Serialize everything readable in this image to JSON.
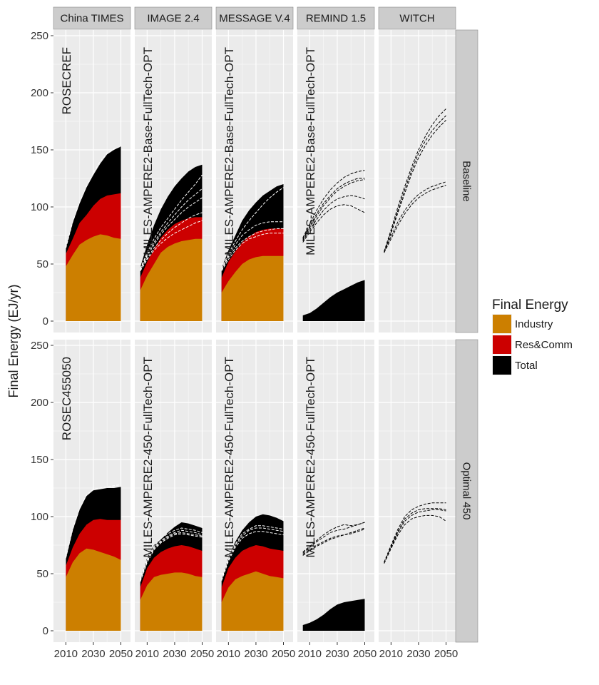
{
  "chart_data": {
    "type": "area",
    "ylabel": "Final Energy (EJ/yr)",
    "ylim": [
      -10,
      255
    ],
    "yticks": [
      0,
      50,
      100,
      150,
      200,
      250
    ],
    "xlim": [
      2001,
      2057
    ],
    "xticks": [
      2010,
      2030,
      2050
    ],
    "xtick_labels": [
      "2010",
      "2030",
      "2050"
    ],
    "grid": true,
    "legend": {
      "title": "Final Energy",
      "position": "right",
      "entries": [
        {
          "name": "Industry",
          "color": "#CC7F00"
        },
        {
          "name": "Res&Comm",
          "color": "#CC0000"
        },
        {
          "name": "Total",
          "color": "#000000"
        }
      ]
    },
    "col_facets": [
      "China TIMES",
      "IMAGE 2.4",
      "MESSAGE V.4",
      "REMIND 1.5",
      "WITCH"
    ],
    "row_facets": [
      "Baseline",
      "Optimal 450"
    ],
    "panels": [
      {
        "row": 0,
        "col": 0,
        "label": "ROSECREF",
        "x": [
          2010,
          2015,
          2020,
          2025,
          2030,
          2035,
          2040,
          2045,
          2050
        ],
        "industry": [
          48,
          58,
          67,
          71,
          74,
          76,
          75,
          73,
          72
        ],
        "rescomm": [
          59,
          72,
          86,
          93,
          101,
          107,
          110,
          111,
          112
        ],
        "total": [
          64,
          86,
          103,
          117,
          128,
          138,
          146,
          150,
          153
        ],
        "dashed": [
          [
            64,
            87,
            104,
            118,
            130,
            140,
            147,
            151,
            153
          ]
        ]
      },
      {
        "row": 0,
        "col": 1,
        "label": "MILES-AMPERE2-Base-FullTech-OPT",
        "x": [
          2005,
          2010,
          2015,
          2020,
          2025,
          2030,
          2035,
          2040,
          2045,
          2050
        ],
        "industry": [
          27,
          40,
          50,
          60,
          65,
          68,
          70,
          71,
          72,
          72
        ],
        "rescomm": [
          38,
          52,
          63,
          73,
          80,
          85,
          88,
          90,
          91,
          91
        ],
        "total": [
          47,
          67,
          84,
          98,
          109,
          118,
          125,
          131,
          135,
          137
        ],
        "dashed": [
          [
            46,
            60,
            72,
            82,
            90,
            98,
            106,
            113,
            120,
            128
          ],
          [
            45,
            57,
            67,
            76,
            83,
            89,
            95,
            100,
            104,
            108
          ],
          [
            44,
            55,
            64,
            71,
            77,
            82,
            86,
            90,
            93,
            95
          ],
          [
            44,
            54,
            62,
            68,
            73,
            77,
            80,
            83,
            86,
            88
          ],
          [
            46,
            58,
            69,
            78,
            86,
            93,
            100,
            106,
            111,
            116
          ]
        ]
      },
      {
        "row": 0,
        "col": 2,
        "label": "MILES-AMPERE2-Base-FullTech-OPT",
        "x": [
          2005,
          2010,
          2015,
          2020,
          2025,
          2030,
          2035,
          2040,
          2045,
          2050
        ],
        "industry": [
          25,
          35,
          43,
          50,
          54,
          56,
          57,
          57,
          57,
          57
        ],
        "rescomm": [
          38,
          52,
          61,
          69,
          74,
          78,
          80,
          81,
          81,
          81
        ],
        "total": [
          46,
          62,
          75,
          88,
          97,
          104,
          110,
          114,
          118,
          120
        ],
        "dashed": [
          [
            45,
            57,
            67,
            75,
            80,
            84,
            86,
            87,
            87,
            87
          ],
          [
            45,
            56,
            64,
            70,
            74,
            77,
            79,
            80,
            81,
            81
          ],
          [
            44,
            54,
            62,
            68,
            72,
            74,
            76,
            77,
            77,
            77
          ],
          [
            46,
            59,
            70,
            80,
            88,
            95,
            102,
            108,
            113,
            117
          ]
        ]
      },
      {
        "row": 0,
        "col": 3,
        "label": "MILES-AMPERE2-Base-FullTech-OPT",
        "x": [
          2005,
          2010,
          2015,
          2020,
          2025,
          2030,
          2035,
          2040,
          2045,
          2050
        ],
        "industry": null,
        "rescomm": null,
        "total": [
          5,
          7,
          11,
          16,
          21,
          25,
          28,
          31,
          34,
          36
        ],
        "dashed": [
          [
            73,
            85,
            97,
            107,
            115,
            121,
            126,
            129,
            131,
            132
          ],
          [
            72,
            83,
            94,
            103,
            110,
            116,
            120,
            123,
            125,
            125
          ],
          [
            71,
            82,
            92,
            101,
            108,
            114,
            118,
            121,
            123,
            124
          ],
          [
            70,
            80,
            89,
            97,
            103,
            107,
            109,
            110,
            109,
            107
          ],
          [
            69,
            78,
            86,
            93,
            98,
            101,
            102,
            101,
            98,
            95
          ]
        ]
      },
      {
        "row": 0,
        "col": 4,
        "label": "",
        "x": [
          2005,
          2010,
          2015,
          2020,
          2025,
          2030,
          2035,
          2040,
          2045,
          2050
        ],
        "industry": null,
        "rescomm": null,
        "total": null,
        "dashed": [
          [
            61,
            80,
            100,
            118,
            135,
            150,
            162,
            172,
            180,
            186
          ],
          [
            60,
            78,
            97,
            115,
            132,
            147,
            158,
            167,
            174,
            180
          ],
          [
            60,
            77,
            95,
            112,
            129,
            143,
            154,
            163,
            170,
            176
          ],
          [
            61,
            74,
            87,
            97,
            105,
            111,
            115,
            118,
            120,
            122
          ],
          [
            60,
            72,
            84,
            94,
            102,
            108,
            112,
            115,
            117,
            119
          ]
        ]
      },
      {
        "row": 1,
        "col": 0,
        "label": "ROSEC455050",
        "x": [
          2010,
          2015,
          2020,
          2025,
          2030,
          2035,
          2040,
          2045,
          2050
        ],
        "industry": [
          47,
          60,
          68,
          72,
          71,
          69,
          67,
          65,
          62
        ],
        "rescomm": [
          57,
          73,
          85,
          93,
          97,
          98,
          97,
          97,
          97
        ],
        "total": [
          63,
          88,
          106,
          118,
          123,
          124,
          125,
          125,
          126
        ],
        "dashed": [
          [
            64,
            89,
            107,
            119,
            124,
            125,
            126,
            127,
            128
          ]
        ]
      },
      {
        "row": 1,
        "col": 1,
        "label": "MILES-AMPERE2-450-FullTech-OPT",
        "x": [
          2005,
          2010,
          2015,
          2020,
          2025,
          2030,
          2035,
          2040,
          2045,
          2050
        ],
        "industry": [
          27,
          40,
          47,
          49,
          50,
          51,
          51,
          50,
          48,
          47
        ],
        "rescomm": [
          38,
          55,
          64,
          69,
          72,
          74,
          75,
          74,
          72,
          70
        ],
        "total": [
          45,
          64,
          75,
          80,
          86,
          91,
          95,
          94,
          92,
          90
        ],
        "dashed": [
          [
            44,
            62,
            73,
            79,
            83,
            86,
            88,
            87,
            86,
            84
          ],
          [
            43,
            60,
            71,
            77,
            81,
            84,
            85,
            84,
            83,
            82
          ],
          [
            44,
            61,
            72,
            78,
            82,
            85,
            86,
            85,
            84,
            83
          ],
          [
            45,
            63,
            74,
            81,
            85,
            88,
            90,
            89,
            88,
            86
          ]
        ]
      },
      {
        "row": 1,
        "col": 2,
        "label": "MILES-AMPERE2-450-FullTech-OPT",
        "x": [
          2005,
          2010,
          2015,
          2020,
          2025,
          2030,
          2035,
          2040,
          2045,
          2050
        ],
        "industry": [
          25,
          38,
          45,
          48,
          50,
          52,
          50,
          48,
          47,
          46
        ],
        "rescomm": [
          38,
          55,
          64,
          70,
          73,
          75,
          74,
          72,
          71,
          70
        ],
        "total": [
          45,
          64,
          78,
          88,
          95,
          100,
          102,
          101,
          99,
          96
        ],
        "dashed": [
          [
            44,
            62,
            75,
            83,
            88,
            90,
            90,
            89,
            88,
            87
          ],
          [
            44,
            61,
            73,
            81,
            85,
            87,
            87,
            86,
            85,
            84
          ],
          [
            45,
            63,
            76,
            85,
            89,
            92,
            92,
            91,
            90,
            89
          ]
        ]
      },
      {
        "row": 1,
        "col": 3,
        "label": "MILES-AMPERE2-450-FullTech-OPT",
        "x": [
          2005,
          2010,
          2015,
          2020,
          2025,
          2030,
          2035,
          2040,
          2045,
          2050
        ],
        "industry": null,
        "rescomm": null,
        "total": [
          5,
          7,
          10,
          14,
          19,
          23,
          25,
          26,
          27,
          28
        ],
        "dashed": [
          [
            69,
            74,
            79,
            84,
            88,
            91,
            93,
            92,
            93,
            95
          ],
          [
            68,
            73,
            78,
            82,
            86,
            88,
            89,
            91,
            93,
            95
          ],
          [
            67,
            71,
            75,
            78,
            81,
            83,
            84,
            86,
            88,
            90
          ],
          [
            66,
            70,
            74,
            77,
            80,
            82,
            84,
            85,
            87,
            89
          ]
        ]
      },
      {
        "row": 1,
        "col": 4,
        "label": "",
        "x": [
          2005,
          2010,
          2015,
          2020,
          2025,
          2030,
          2035,
          2040,
          2045,
          2050
        ],
        "industry": null,
        "rescomm": null,
        "total": null,
        "dashed": [
          [
            60,
            75,
            89,
            100,
            106,
            109,
            111,
            112,
            112,
            112
          ],
          [
            59,
            73,
            86,
            96,
            101,
            104,
            105,
            106,
            106,
            105
          ],
          [
            59,
            72,
            84,
            93,
            98,
            100,
            101,
            101,
            100,
            96
          ],
          [
            60,
            74,
            87,
            98,
            103,
            106,
            107,
            107,
            107,
            106
          ]
        ]
      }
    ]
  }
}
